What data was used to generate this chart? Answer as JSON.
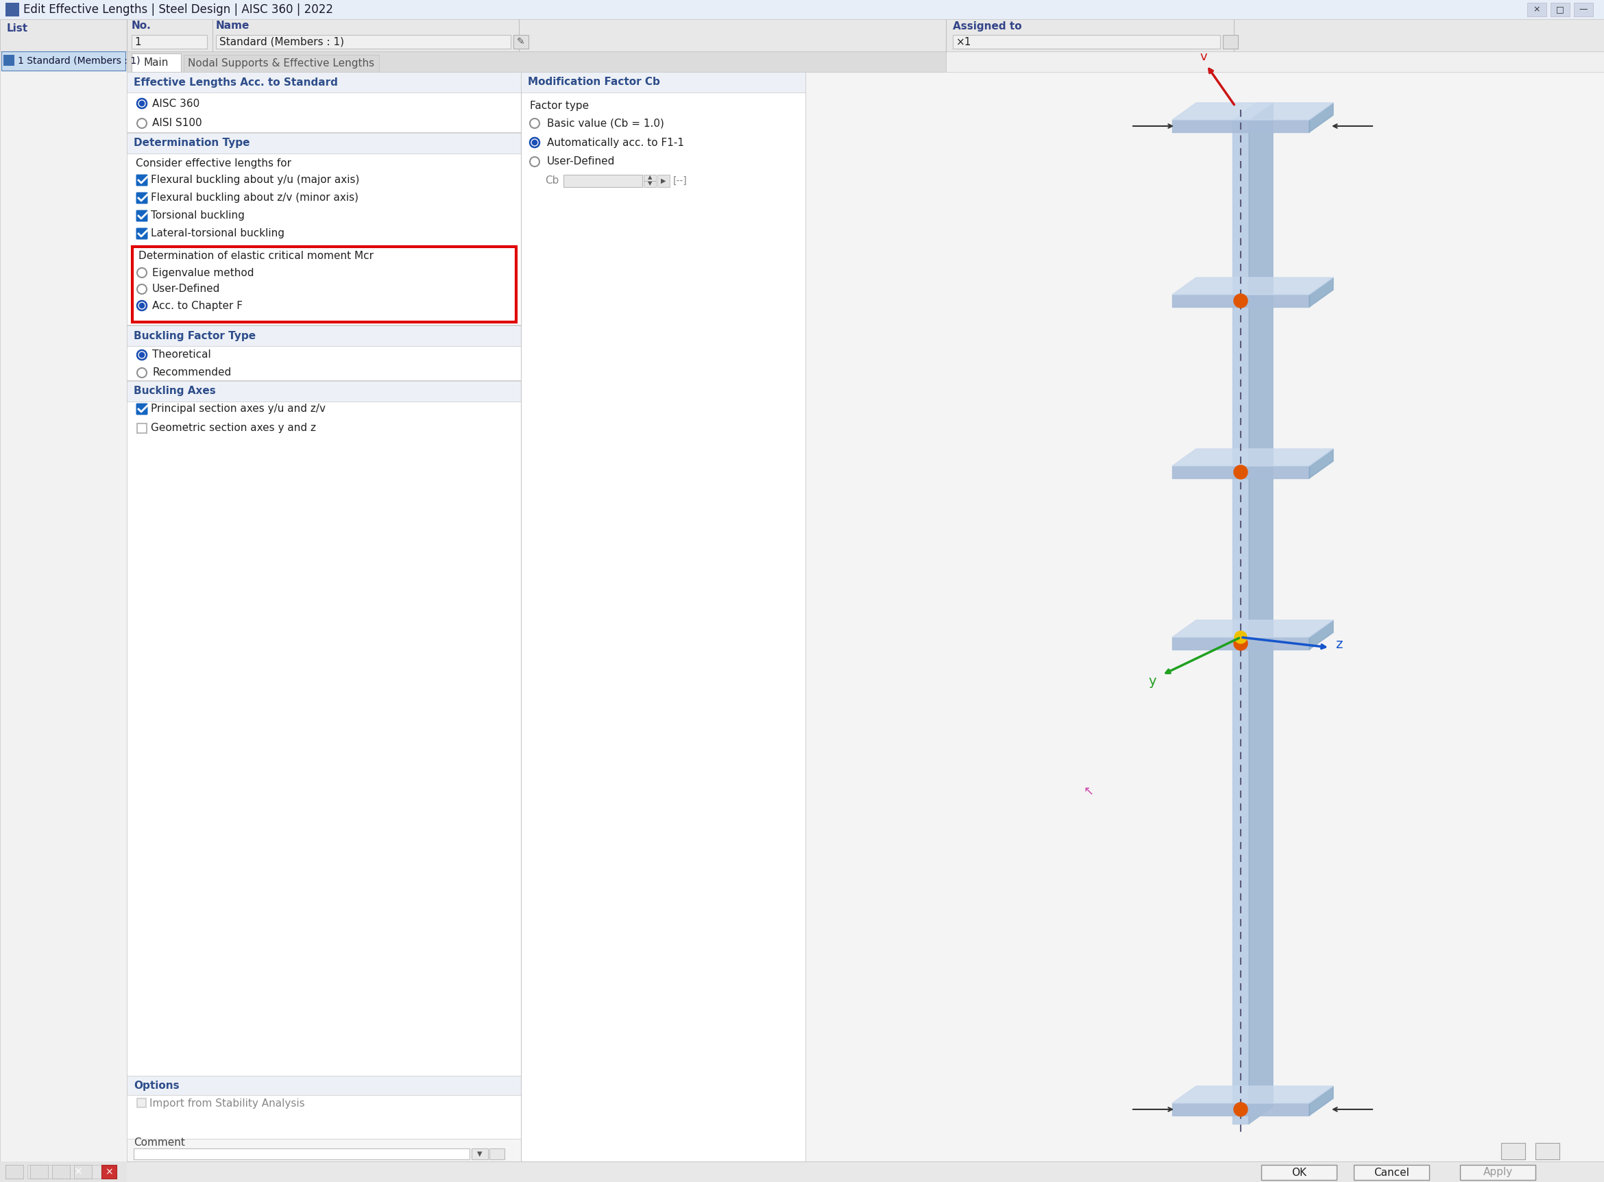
{
  "title_bar": "Edit Effective Lengths | Steel Design | AISC 360 | 2022",
  "window_bg": "#f0f0f0",
  "titlebar_bg": "#e8eef8",
  "panel_bg": "#ffffff",
  "header_color": "#2e4d8a",
  "section_bg": "#edf1f7",
  "blue_radio": "#1a4fb5",
  "checkbox_blue": "#1565c0",
  "red_box_color": "#e00000",
  "list_header": "List",
  "list_item": "1 Standard (Members : 1)",
  "no_label": "No.",
  "no_value": "1",
  "name_label": "Name",
  "name_value": "Standard (Members : 1)",
  "assigned_to_label": "Assigned to",
  "assigned_to_value": "×1",
  "tab_main": "Main",
  "tab_nodal": "Nodal Supports & Effective Lengths",
  "section_eff_lengths": "Effective Lengths Acc. to Standard",
  "radio_aisc360": "AISC 360",
  "radio_aisi": "AISI S100",
  "section_det_type": "Determination Type",
  "consider_text": "Consider effective lengths for",
  "check1": "Flexural buckling about y/u (major axis)",
  "check2": "Flexural buckling about z/v (minor axis)",
  "check3": "Torsional buckling",
  "check4": "Lateral-torsional buckling",
  "det_mcr_label": "Determination of elastic critical moment Mcr",
  "radio_eigen": "Eigenvalue method",
  "radio_user_def1": "User-Defined",
  "radio_chapter_f": "Acc. to Chapter F",
  "section_buckling": "Buckling Factor Type",
  "radio_theoretical": "Theoretical",
  "radio_recommended": "Recommended",
  "section_buck_axes": "Buckling Axes",
  "check_principal": "Principal section axes y/u and z/v",
  "check_geometric": "Geometric section axes y and z",
  "section_options": "Options",
  "check_import": "Import from Stability Analysis",
  "section_modif": "Modification Factor Cb",
  "factor_type_label": "Factor type",
  "radio_basic": "Basic value (Cb = 1.0)",
  "radio_auto": "Automatically acc. to F1-1",
  "radio_user_def2": "User-Defined",
  "cb_label": "Cb",
  "cb_value": "[--]",
  "comment_label": "Comment",
  "btn_ok": "OK",
  "btn_cancel": "Cancel",
  "btn_apply": "Apply"
}
